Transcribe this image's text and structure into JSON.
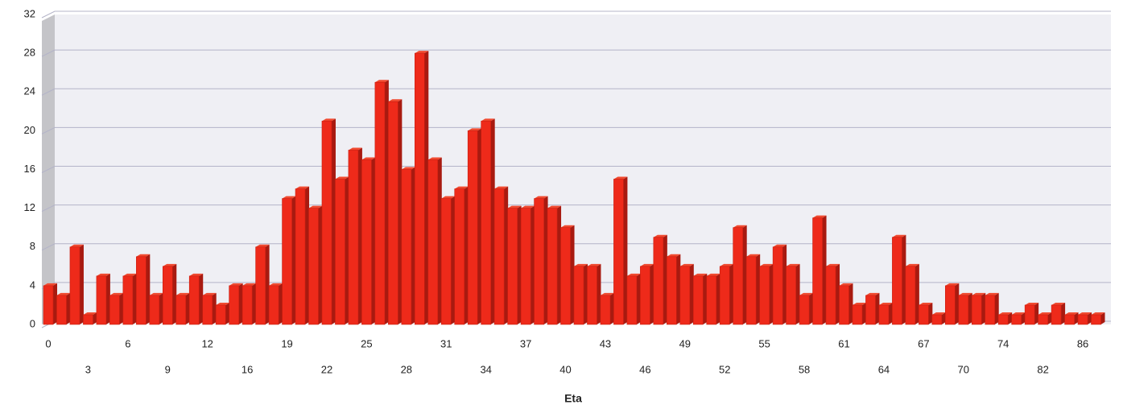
{
  "chart_data": {
    "type": "bar3d",
    "x_label": "Eta",
    "categories": [
      "0",
      null,
      null,
      "3",
      null,
      null,
      "6",
      null,
      null,
      "9",
      null,
      null,
      "12",
      null,
      null,
      "16",
      null,
      null,
      "19",
      null,
      null,
      "22",
      null,
      null,
      "25",
      null,
      null,
      "28",
      null,
      null,
      "31",
      null,
      null,
      "34",
      null,
      null,
      "37",
      null,
      null,
      "40",
      null,
      null,
      "43",
      null,
      null,
      "46",
      null,
      null,
      "49",
      null,
      null,
      "52",
      null,
      null,
      "55",
      null,
      null,
      "58",
      null,
      null,
      "61",
      null,
      null,
      "64",
      null,
      null,
      "67",
      null,
      null,
      "70",
      null,
      null,
      "74",
      null,
      null,
      "82",
      null,
      null,
      "86",
      null
    ],
    "values": [
      4,
      3,
      8,
      1,
      5,
      3,
      5,
      7,
      3,
      6,
      3,
      5,
      3,
      2,
      4,
      4,
      8,
      4,
      13,
      14,
      12,
      21,
      15,
      18,
      17,
      25,
      23,
      16,
      28,
      17,
      13,
      14,
      20,
      21,
      14,
      12,
      12,
      13,
      12,
      10,
      6,
      6,
      3,
      15,
      5,
      6,
      9,
      7,
      6,
      5,
      5,
      6,
      10,
      7,
      6,
      8,
      6,
      3,
      11,
      6,
      4,
      2,
      3,
      2,
      9,
      6,
      2,
      1,
      4,
      3,
      3,
      3,
      1,
      1,
      2,
      1,
      2,
      1,
      1,
      1
    ],
    "color": "#ee2a1a",
    "ylim": [
      0,
      32
    ],
    "yticks": [
      0,
      4,
      8,
      12,
      16,
      20,
      24,
      28,
      32
    ],
    "grid": true
  }
}
